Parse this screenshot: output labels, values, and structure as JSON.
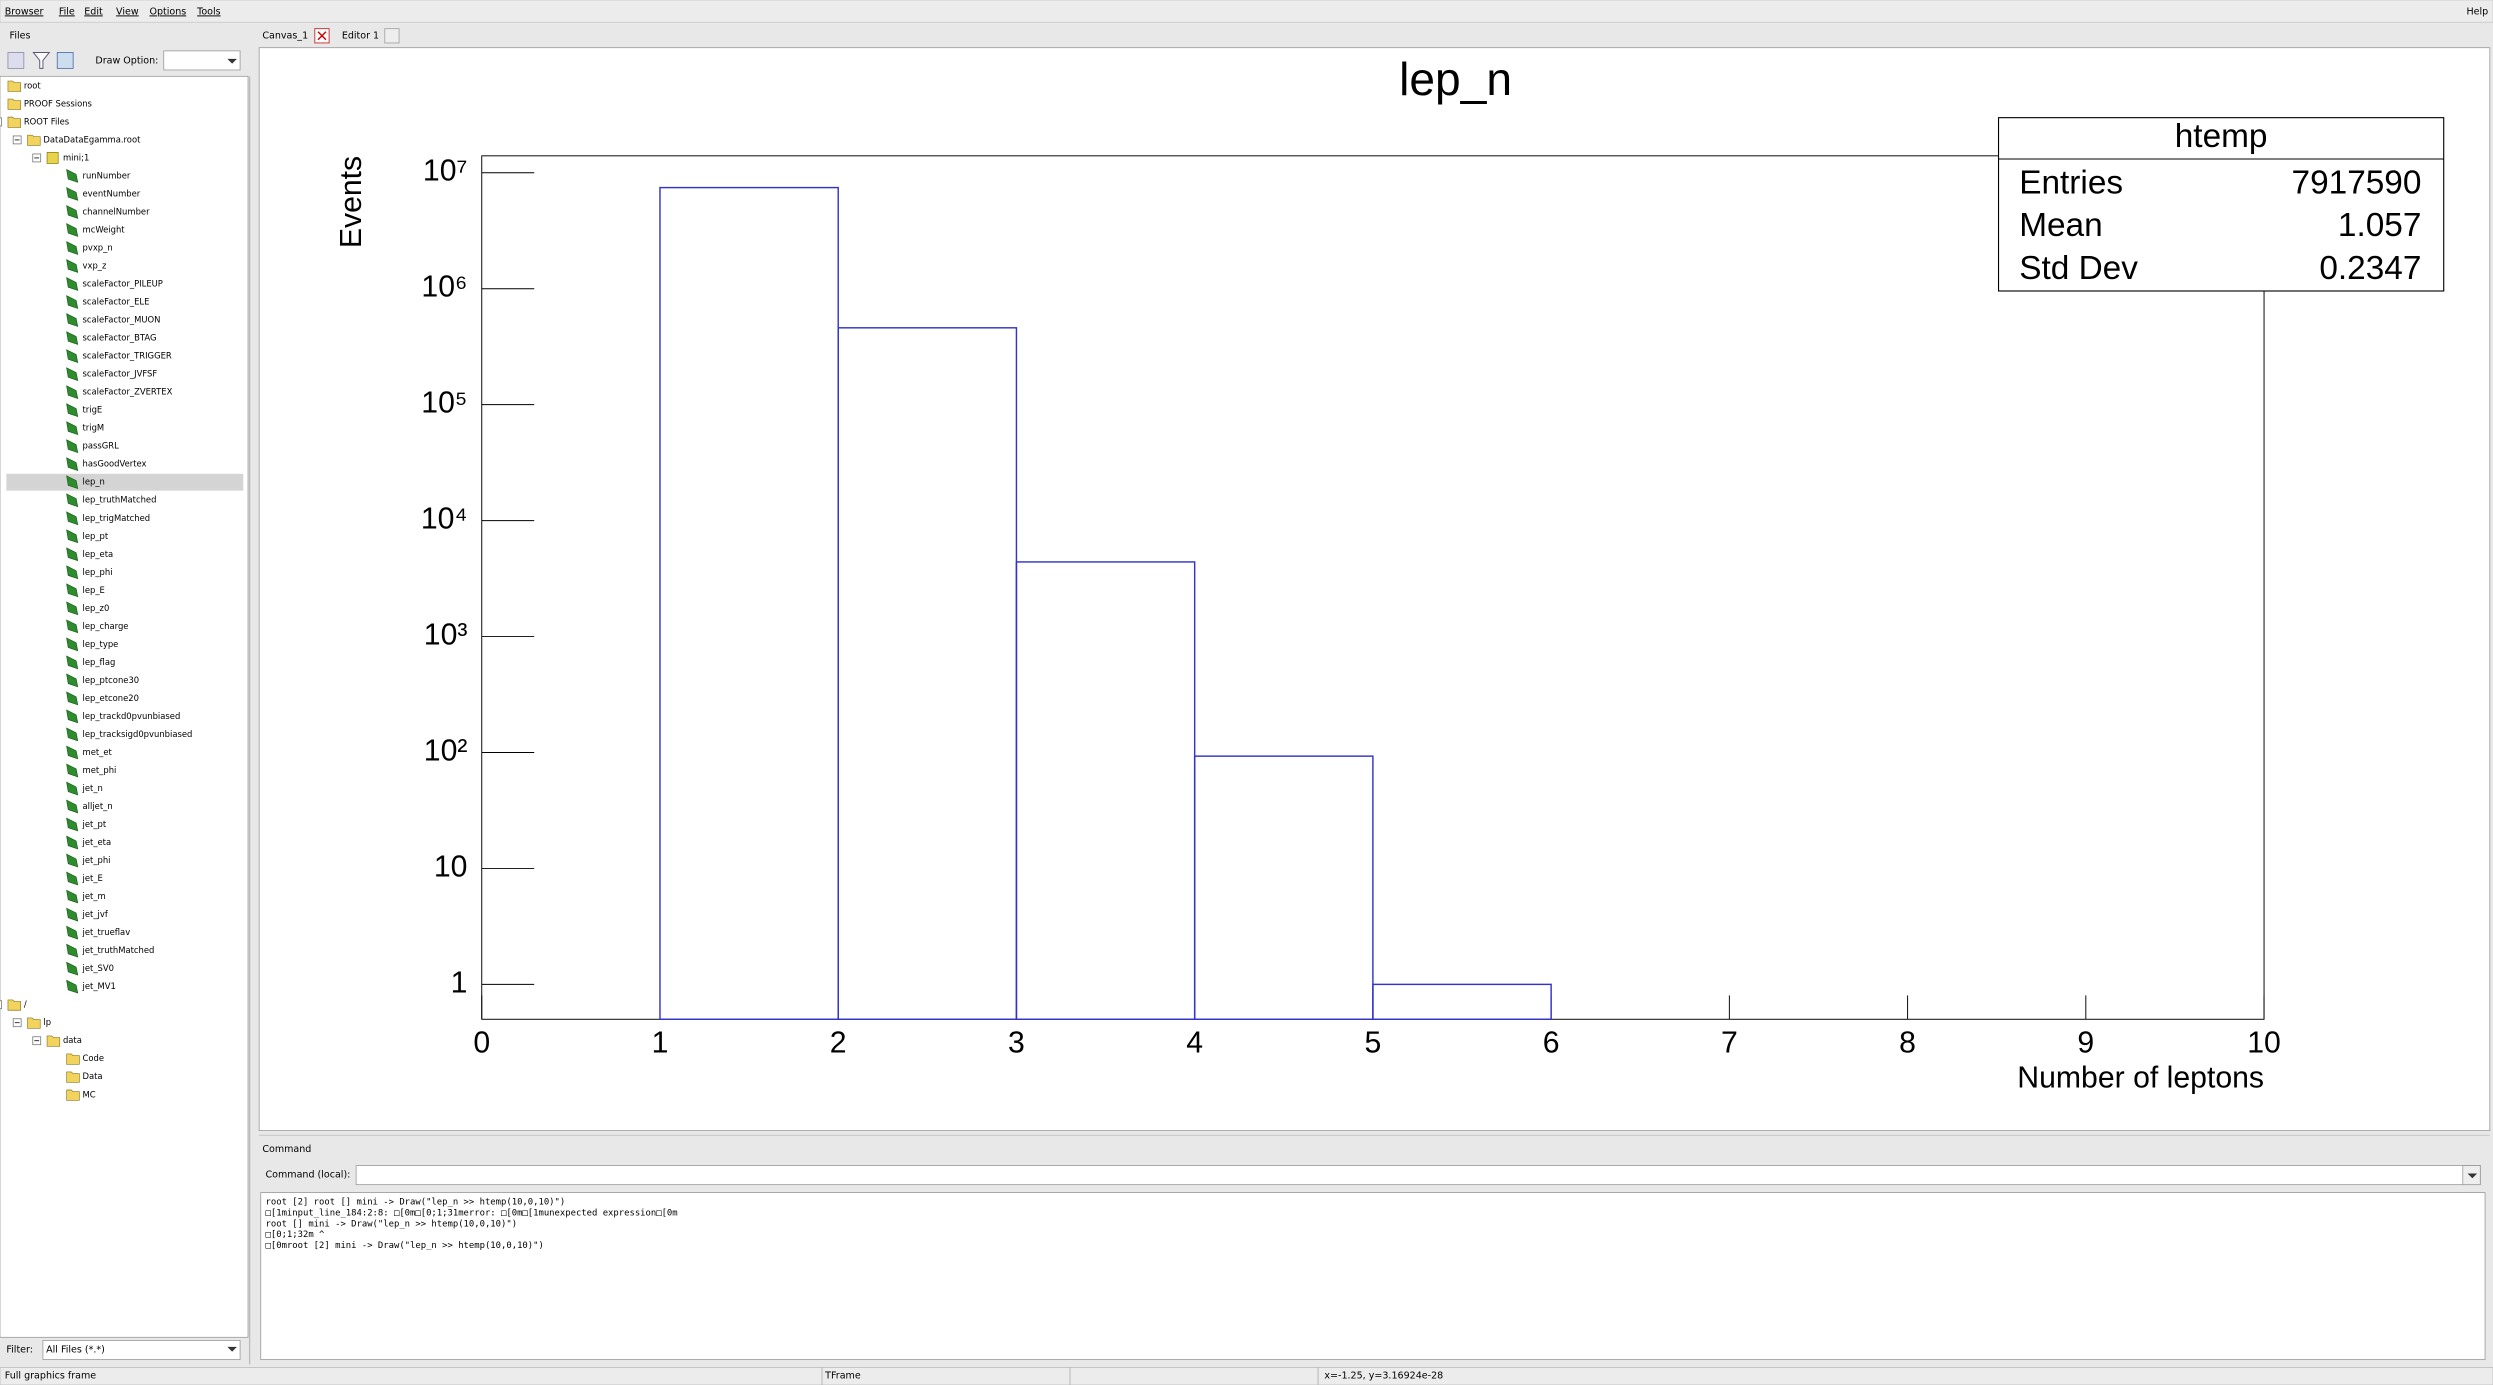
{
  "menu": [
    "Browser",
    "File",
    "Edit",
    "View",
    "Options",
    "Tools"
  ],
  "help": "Help",
  "left_tab": "Files",
  "draw_option": "Draw Option:",
  "tree": [
    {
      "label": "root"
    },
    {
      "label": "PROOF Sessions"
    },
    {
      "label": "ROOT Files",
      "children": [
        {
          "label": "DataDataEgamma.root",
          "children": [
            {
              "label": "mini;1",
              "children": [
                {
                  "label": "runNumber"
                },
                {
                  "label": "eventNumber"
                },
                {
                  "label": "channelNumber"
                },
                {
                  "label": "mcWeight"
                },
                {
                  "label": "pvxp_n"
                },
                {
                  "label": "vxp_z"
                },
                {
                  "label": "scaleFactor_PILEUP"
                },
                {
                  "label": "scaleFactor_ELE"
                },
                {
                  "label": "scaleFactor_MUON"
                },
                {
                  "label": "scaleFactor_BTAG"
                },
                {
                  "label": "scaleFactor_TRIGGER"
                },
                {
                  "label": "scaleFactor_JVFSF"
                },
                {
                  "label": "scaleFactor_ZVERTEX"
                },
                {
                  "label": "trigE"
                },
                {
                  "label": "trigM"
                },
                {
                  "label": "passGRL"
                },
                {
                  "label": "hasGoodVertex"
                },
                {
                  "label": "lep_n",
                  "selected": true
                },
                {
                  "label": "lep_truthMatched"
                },
                {
                  "label": "lep_trigMatched"
                },
                {
                  "label": "lep_pt"
                },
                {
                  "label": "lep_eta"
                },
                {
                  "label": "lep_phi"
                },
                {
                  "label": "lep_E"
                },
                {
                  "label": "lep_z0"
                },
                {
                  "label": "lep_charge"
                },
                {
                  "label": "lep_type"
                },
                {
                  "label": "lep_flag"
                },
                {
                  "label": "lep_ptcone30"
                },
                {
                  "label": "lep_etcone20"
                },
                {
                  "label": "lep_trackd0pvunbiased"
                },
                {
                  "label": "lep_tracksigd0pvunbiased"
                },
                {
                  "label": "met_et"
                },
                {
                  "label": "met_phi"
                },
                {
                  "label": "jet_n"
                },
                {
                  "label": "alljet_n"
                },
                {
                  "label": "jet_pt"
                },
                {
                  "label": "jet_eta"
                },
                {
                  "label": "jet_phi"
                },
                {
                  "label": "jet_E"
                },
                {
                  "label": "jet_m"
                },
                {
                  "label": "jet_jvf"
                },
                {
                  "label": "jet_trueflav"
                },
                {
                  "label": "jet_truthMatched"
                },
                {
                  "label": "jet_SV0"
                },
                {
                  "label": "jet_MV1"
                }
              ]
            }
          ]
        }
      ]
    },
    {
      "label": "/",
      "children": [
        {
          "label": "lp",
          "children": [
            {
              "label": "data",
              "children": [
                {
                  "label": "Code"
                },
                {
                  "label": "Data"
                },
                {
                  "label": "MC"
                }
              ]
            }
          ]
        }
      ]
    }
  ],
  "filter_label": "Filter:",
  "filter_value": "All Files (*.*)",
  "tabs": [
    "Canvas_1",
    "Editor 1"
  ],
  "chart_data": {
    "type": "histogram",
    "title": "lep_n",
    "xlabel": "Number of leptons",
    "ylabel": "Events",
    "bins": [
      0,
      1,
      2,
      3,
      4,
      5,
      6,
      7,
      8,
      9,
      10
    ],
    "values": [
      0,
      7450000,
      460000,
      4400,
      93,
      1,
      0,
      0,
      0,
      0
    ],
    "color": "#3333cc",
    "xlim": [
      0,
      10
    ],
    "xticks": [
      0,
      1,
      2,
      3,
      4,
      5,
      6,
      7,
      8,
      9,
      10
    ],
    "ylim": [
      0.5,
      14000000
    ],
    "log_y": true,
    "yticks": [
      1,
      10,
      {
        "value": 100,
        "label": "10²"
      },
      {
        "value": 1000,
        "label": "10³"
      },
      {
        "value": 10000,
        "label": "10⁴"
      },
      {
        "value": 100000,
        "label": "10⁵"
      },
      {
        "value": 1000000,
        "label": "10⁶"
      },
      {
        "value": 10000000,
        "label": "10⁷"
      }
    ],
    "stats_box": {
      "title": "htemp",
      "rows": [
        {
          "label": "Entries",
          "value": 7917590
        },
        {
          "label": "Mean",
          "value": 1.057
        },
        {
          "label": "Std Dev",
          "value": 0.2347
        }
      ]
    }
  },
  "command_tab": "Command",
  "command_label": "Command (local):",
  "command_output": [
    "root [2] root [] mini -> Draw(\"lep_n >> htemp(10,0,10)\")",
    "□[1minput_line_184:2:8: □[0m□[0;1;31merror: □[0m□[1munexpected expression□[0m",
    " root [] mini -> Draw(\"lep_n >> htemp(10,0,10)\")",
    "□[0;1;32m          ^",
    "□[0mroot [2] mini -> Draw(\"lep_n >> htemp(10,0,10)\")"
  ],
  "status": [
    "Full graphics frame",
    "TFrame",
    "x=-1.25, y=3.16924e-28"
  ]
}
